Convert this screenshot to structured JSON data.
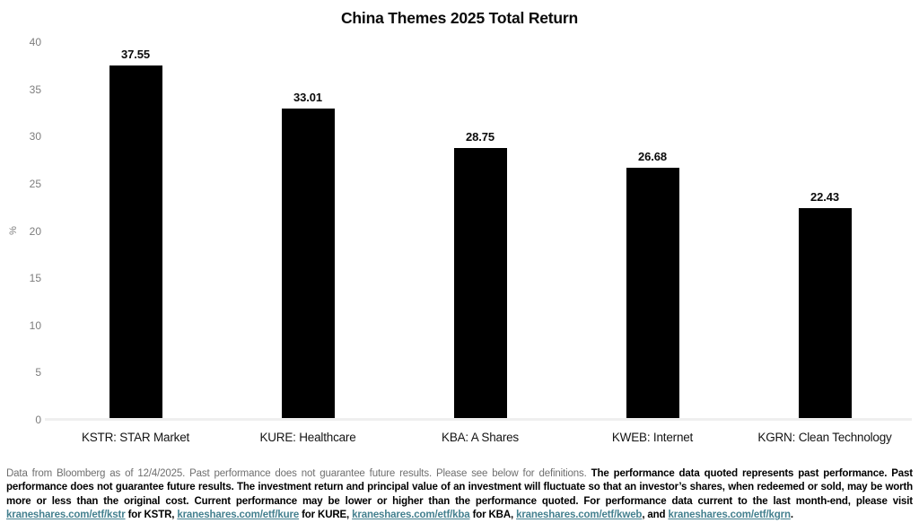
{
  "chart_data": {
    "type": "bar",
    "title": "China Themes 2025 Total Return",
    "xlabel": "",
    "ylabel": "%",
    "categories": [
      "KSTR: STAR Market",
      "KURE: Healthcare",
      "KBA: A Shares",
      "KWEB: Internet",
      "KGRN: Clean Technology"
    ],
    "values": [
      37.55,
      33.01,
      28.75,
      26.68,
      22.43
    ],
    "value_labels": [
      "37.55",
      "33.01",
      "28.75",
      "26.68",
      "22.43"
    ],
    "ylim": [
      0,
      40
    ],
    "yticks": [
      0,
      5,
      10,
      15,
      20,
      25,
      30,
      35,
      40
    ],
    "bar_color": "#000000",
    "grid": false,
    "legend": "none"
  },
  "footer": {
    "intro": "Data from Bloomberg as of 12/4/2025. Past performance does not guarantee future results. Please see below for definitions. ",
    "bold_text": "The performance data quoted represents past performance. Past performance does not guarantee future results. The investment return and principal value of an investment will fluctuate so that an investor’s shares, when redeemed or sold, may be worth more or less than the original cost. Current performance may be lower or higher than the performance quoted. For performance data current to the last month-end, please visit ",
    "links": [
      {
        "text": "kraneshares.com/etf/kstr",
        "after": " for KSTR, "
      },
      {
        "text": "kraneshares.com/etf/kure",
        "after": " for KURE, "
      },
      {
        "text": "kraneshares.com/etf/kba",
        "after": " for KBA, "
      },
      {
        "text": "kraneshares.com/etf/kweb",
        "after": ", and "
      },
      {
        "text": "kraneshares.com/etf/kgrn",
        "after": "."
      }
    ],
    "link_color": "#44808f"
  }
}
